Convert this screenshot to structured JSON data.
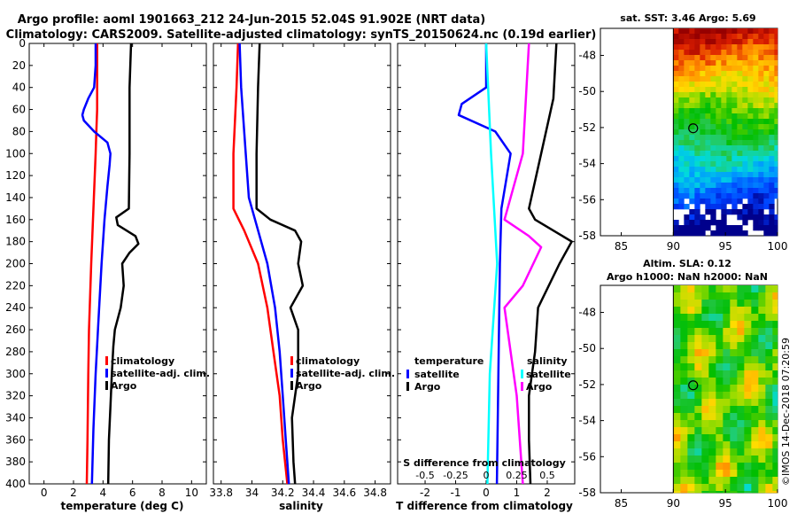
{
  "header": {
    "line1": "Argo profile: aoml 1901663_212 24-Jun-2015 52.04S 91.902E (NRT data)",
    "line2": "Climatology: CARS2009. Satellite-adjusted climatology: synTS_20150624.nc (0.19d earlier)"
  },
  "chart_data": [
    {
      "type": "line",
      "panel": "temperature",
      "xlabel": "temperature (deg C)",
      "ylabel": "depth",
      "xlim": [
        -1,
        11
      ],
      "ylim": [
        400,
        0
      ],
      "xticks": [
        0,
        2,
        4,
        6,
        8,
        10
      ],
      "yticks": [
        0,
        20,
        40,
        60,
        80,
        100,
        120,
        140,
        160,
        180,
        200,
        220,
        240,
        260,
        280,
        300,
        320,
        340,
        360,
        380,
        400
      ],
      "legend": [
        "climatology",
        "satellite-adj. clim.",
        "Argo"
      ],
      "series": [
        {
          "name": "climatology",
          "color": "#ff0000",
          "depth": [
            0,
            20,
            60,
            80,
            100,
            150,
            200,
            260,
            300,
            360,
            400
          ],
          "values": [
            3.6,
            3.6,
            3.6,
            3.55,
            3.5,
            3.35,
            3.2,
            3.05,
            3.0,
            2.95,
            2.9
          ]
        },
        {
          "name": "satellite-adj. clim.",
          "color": "#0000ff",
          "depth": [
            0,
            20,
            40,
            50,
            60,
            65,
            70,
            80,
            90,
            100,
            110,
            130,
            160,
            200,
            250,
            300,
            350,
            400
          ],
          "values": [
            3.5,
            3.5,
            3.4,
            3.0,
            2.7,
            2.6,
            2.7,
            3.4,
            4.3,
            4.5,
            4.45,
            4.3,
            4.1,
            3.9,
            3.7,
            3.5,
            3.35,
            3.25
          ]
        },
        {
          "name": "Argo",
          "color": "#000000",
          "depth": [
            0,
            40,
            100,
            150,
            158,
            165,
            175,
            182,
            190,
            200,
            220,
            240,
            260,
            275,
            300,
            330,
            360,
            400
          ],
          "values": [
            5.9,
            5.8,
            5.8,
            5.75,
            4.9,
            5.0,
            6.2,
            6.4,
            5.8,
            5.3,
            5.4,
            5.2,
            4.8,
            4.7,
            4.6,
            4.5,
            4.4,
            4.35
          ]
        }
      ]
    },
    {
      "type": "line",
      "panel": "salinity",
      "xlabel": "salinity",
      "xlim": [
        33.75,
        34.9
      ],
      "ylim": [
        400,
        0
      ],
      "xticks": [
        "33.8",
        "34",
        "34.2",
        "34.4",
        "34.6",
        "34.8"
      ],
      "legend": [
        "climatology",
        "satellite-adj. clim.",
        "Argo"
      ],
      "series": [
        {
          "name": "climatology",
          "color": "#ff0000",
          "depth": [
            0,
            40,
            100,
            150,
            170,
            200,
            240,
            280,
            320,
            360,
            400
          ],
          "values": [
            33.91,
            33.9,
            33.88,
            33.88,
            33.95,
            34.04,
            34.1,
            34.14,
            34.18,
            34.2,
            34.23
          ]
        },
        {
          "name": "satellite-adj. clim.",
          "color": "#0000ff",
          "depth": [
            0,
            40,
            100,
            140,
            160,
            200,
            240,
            280,
            320,
            360,
            400
          ],
          "values": [
            33.92,
            33.93,
            33.96,
            33.98,
            34.02,
            34.1,
            34.15,
            34.18,
            34.2,
            34.22,
            34.24
          ]
        },
        {
          "name": "Argo",
          "color": "#000000",
          "depth": [
            0,
            40,
            100,
            150,
            160,
            170,
            180,
            200,
            220,
            240,
            260,
            280,
            300,
            340,
            380,
            400
          ],
          "values": [
            34.05,
            34.04,
            34.03,
            34.03,
            34.12,
            34.28,
            34.32,
            34.3,
            34.33,
            34.25,
            34.3,
            34.3,
            34.3,
            34.26,
            34.27,
            34.28
          ]
        }
      ]
    },
    {
      "type": "line",
      "panel": "difference",
      "xlabel": "T difference from climatology",
      "xlabel_top": "S difference from climatology",
      "xlim": [
        -2.9,
        2.9
      ],
      "ylim": [
        400,
        0
      ],
      "xticks": [
        "-2",
        "-1",
        "0",
        "1",
        "2"
      ],
      "xticks_s": [
        "-0.5",
        "-0.25",
        "0",
        "0.25",
        "0.5"
      ],
      "legend_temperature_title": "temperature",
      "legend_salinity_title": "salinity",
      "legend_items": [
        "satellite",
        "Argo",
        "satellite",
        "Argo"
      ],
      "series": [
        {
          "name": "temperature satellite",
          "color": "#0000ff",
          "depth": [
            0,
            40,
            55,
            65,
            80,
            100,
            150,
            200,
            300,
            400
          ],
          "values": [
            0.0,
            0.0,
            -0.8,
            -0.9,
            0.3,
            0.8,
            0.5,
            0.45,
            0.4,
            0.35
          ]
        },
        {
          "name": "temperature Argo",
          "color": "#000000",
          "depth": [
            0,
            50,
            100,
            150,
            160,
            180,
            200,
            240,
            280,
            320,
            360,
            400
          ],
          "values": [
            2.3,
            2.2,
            1.8,
            1.4,
            1.6,
            2.8,
            2.4,
            1.7,
            1.6,
            1.4,
            1.4,
            1.45
          ]
        },
        {
          "name": "salinity satellite",
          "color": "#00ffff",
          "depth": [
            0,
            100,
            200,
            300,
            400
          ],
          "values": [
            0.0,
            0.04,
            0.09,
            0.03,
            0.01
          ]
        },
        {
          "name": "salinity Argo",
          "color": "#ff00ff",
          "depth": [
            0,
            100,
            140,
            160,
            175,
            185,
            220,
            240,
            280,
            320,
            400
          ],
          "values": [
            0.35,
            0.3,
            0.2,
            0.15,
            0.35,
            0.45,
            0.3,
            0.15,
            0.2,
            0.25,
            0.3
          ]
        }
      ]
    },
    {
      "type": "heatmap",
      "panel": "sst-map",
      "title": "sat. SST: 3.46 Argo: 5.69",
      "xticks": [
        "85",
        "90",
        "95",
        "100"
      ],
      "yticks": [
        "-48",
        "-50",
        "-52",
        "-54",
        "-56",
        "-58"
      ],
      "xlim": [
        83,
        100
      ],
      "ylim": [
        -58,
        -46.5
      ],
      "marker": {
        "lon": 91.902,
        "lat": -52.04
      }
    },
    {
      "type": "heatmap",
      "panel": "sla-map",
      "title_line1": "Altim. SLA: 0.12",
      "title_line2": "Argo h1000: NaN h2000: NaN",
      "xticks": [
        "85",
        "90",
        "95",
        "100"
      ],
      "yticks": [
        "-48",
        "-50",
        "-52",
        "-54",
        "-56",
        "-58"
      ],
      "xlim": [
        83,
        100
      ],
      "ylim": [
        -58,
        -46.5
      ],
      "marker": {
        "lon": 91.902,
        "lat": -52.04
      }
    }
  ],
  "credit": "©IMOS 14-Dec-2018 07:20:59"
}
